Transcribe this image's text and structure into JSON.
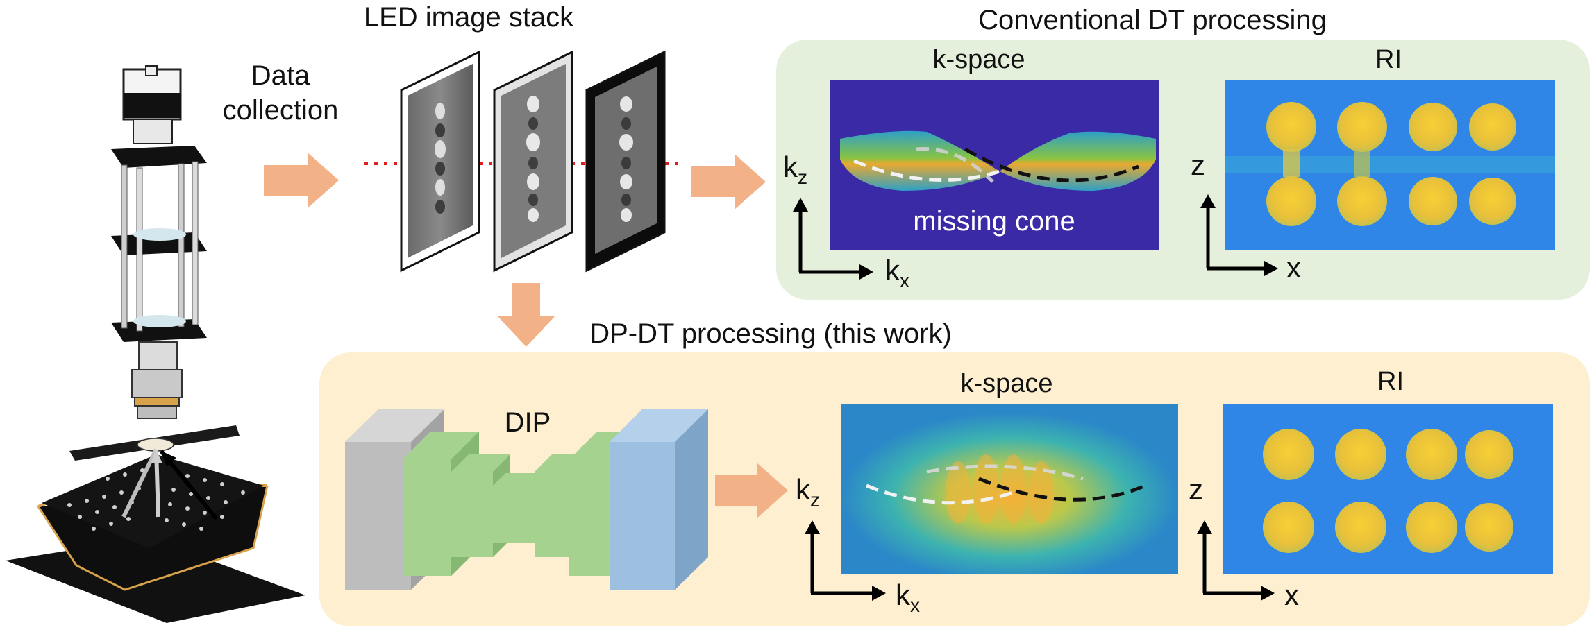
{
  "labels": {
    "data_collection_line1": "Data",
    "data_collection_line2": "collection",
    "led_image_stack": "LED image stack",
    "conventional_title": "Conventional DT processing",
    "dpdt_title": "DP-DT processing (this work)",
    "kspace_top": "k-space",
    "ri_top": "RI",
    "kspace_bottom": "k-space",
    "ri_bottom": "RI",
    "missing_cone": "missing cone",
    "dip": "DIP",
    "axis_k": "k",
    "sub_z": "z",
    "sub_x": "x",
    "axis_z": "z",
    "axis_x": "x"
  },
  "colors": {
    "arrow": "#f2b187",
    "conventional_panel": "#e4efdc",
    "dpdt_panel": "#fdefcf",
    "missing_cone_bg": "#3b2aa6",
    "ri_background": "#2f86e6",
    "sphere": "#f2c832",
    "encoder_block": "#9ccb86",
    "input_block": "#bdbdbd",
    "output_block": "#9ec0e0",
    "laser_dots": "#e21d1d"
  },
  "icons": {
    "microscope": "microscope-setup-icon",
    "led_array": "led-array-icon"
  }
}
